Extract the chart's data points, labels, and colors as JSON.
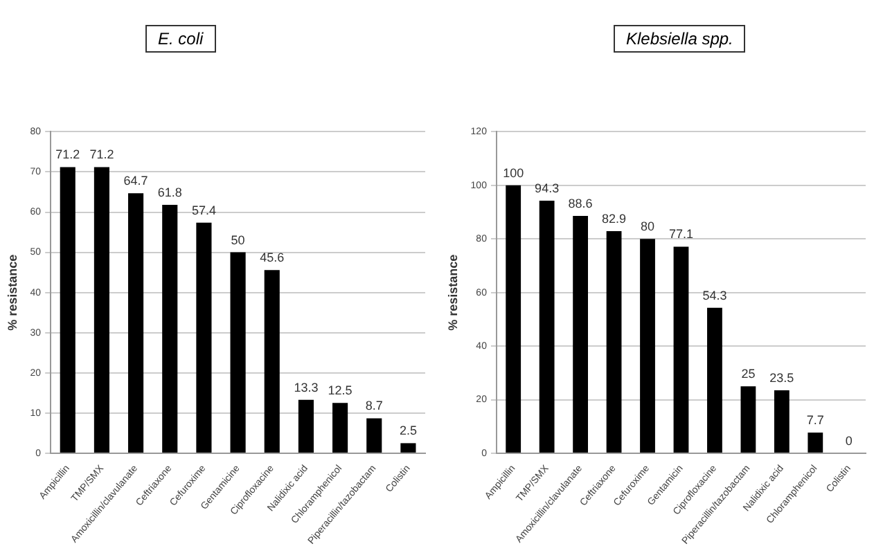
{
  "chart_data": [
    {
      "type": "bar",
      "title": "E. coli",
      "ylabel": "% resistance",
      "categories": [
        "Ampicillin",
        "TMP/SMX",
        "Amoxicillin/clavulanate",
        "Ceftriaxone",
        "Cefuroxime",
        "Gentamicine",
        "Ciprofloxacine",
        "Nalidixic acid",
        "Chloramphenicol",
        "Piperacillin/tazobactam",
        "Colistin"
      ],
      "values": [
        71.2,
        71.2,
        64.7,
        61.8,
        57.4,
        50,
        45.6,
        13.3,
        12.5,
        8.7,
        2.5
      ],
      "color": "#000000",
      "ylim": [
        0,
        80
      ],
      "yticks": [
        0,
        10,
        20,
        30,
        40,
        50,
        60,
        70,
        80
      ],
      "grid": "y",
      "data_labels": true,
      "legend": false
    },
    {
      "type": "bar",
      "title": "Klebsiella spp.",
      "ylabel": "% resistance",
      "categories": [
        "Ampicillin",
        "TMP/SMX",
        "Amoxicillin/clavulanate",
        "Ceftriaxone",
        "Cefuroxime",
        "Gentamicin",
        "Ciprofloxacine",
        "Piperacillin/tazobactam",
        "Nalidixic acid",
        "Chloramphenicol",
        "Colistin"
      ],
      "values": [
        100,
        94.3,
        88.6,
        82.9,
        80,
        77.1,
        54.3,
        25,
        23.5,
        7.7,
        0
      ],
      "color": "#000000",
      "ylim": [
        0,
        120
      ],
      "yticks": [
        0,
        20,
        40,
        60,
        80,
        100,
        120
      ],
      "grid": "y",
      "data_labels": true,
      "legend": false
    }
  ]
}
